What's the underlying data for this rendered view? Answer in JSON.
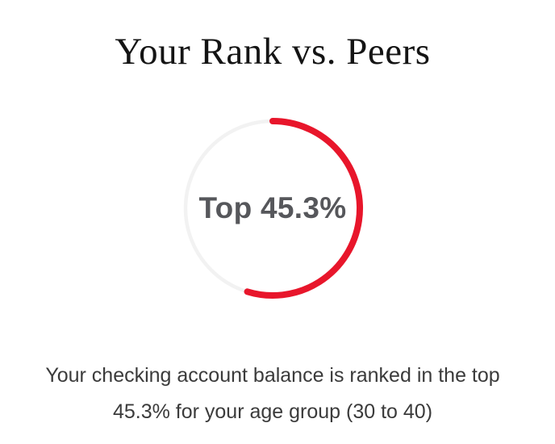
{
  "title": "Your Rank vs. Peers",
  "chart_data": {
    "type": "pie",
    "subtype": "donut-gauge",
    "title": "Your Rank vs. Peers",
    "center_label": "Top 45.3%",
    "rank_top_percent": 45.3,
    "start_angle_deg": 0,
    "direction": "clockwise",
    "legend_position": "none",
    "series": [
      {
        "name": "progress-arc",
        "value": 54.7,
        "color": "#e8162b"
      },
      {
        "name": "track-ring",
        "value": 45.3,
        "color": "#f2f2f2"
      }
    ],
    "center_label_color": "#56575b"
  },
  "caption": {
    "lines": [
      "Your checking account balance is ranked in the top",
      "45.3% for your age group (30 to 40)"
    ]
  }
}
